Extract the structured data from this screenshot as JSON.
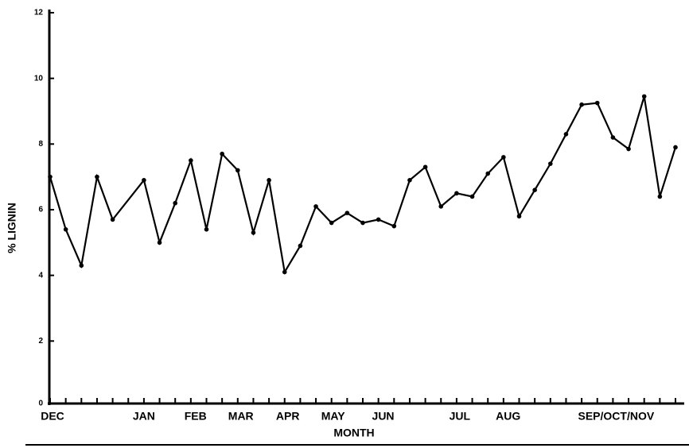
{
  "chart_data": {
    "type": "line",
    "x_label": "MONTH",
    "y_label": "% LIGNIN",
    "x": [
      0,
      1,
      2,
      3,
      4,
      6,
      7,
      8,
      9,
      10,
      11,
      12,
      13,
      14,
      15,
      16,
      17,
      18,
      19,
      20,
      21,
      22,
      23,
      24,
      25,
      26,
      27,
      28,
      29,
      30,
      31,
      32,
      33,
      34,
      35,
      36,
      37,
      38,
      39,
      40
    ],
    "values": [
      7.0,
      5.4,
      4.3,
      7.0,
      5.7,
      6.9,
      5.0,
      6.2,
      7.5,
      5.4,
      7.7,
      7.2,
      5.3,
      6.9,
      4.1,
      4.9,
      6.1,
      5.6,
      5.9,
      5.6,
      5.7,
      5.5,
      6.9,
      7.3,
      6.1,
      6.5,
      6.4,
      7.1,
      7.6,
      5.8,
      6.6,
      7.4,
      8.3,
      9.2,
      9.25,
      8.2,
      7.85,
      9.45,
      6.4,
      7.9
    ],
    "color": "#000000",
    "xlim": [
      0,
      40
    ],
    "xticks": [
      {
        "value": 0,
        "label": "DEC"
      },
      {
        "value": 6,
        "label": "JAN"
      },
      {
        "value": 9.3,
        "label": "FEB"
      },
      {
        "value": 12.2,
        "label": "MAR"
      },
      {
        "value": 15.2,
        "label": "APR"
      },
      {
        "value": 18.1,
        "label": "MAY"
      },
      {
        "value": 21.3,
        "label": "JUN"
      },
      {
        "value": 26.2,
        "label": "JUL"
      },
      {
        "value": 29.3,
        "label": "AUG"
      },
      {
        "value": 36.2,
        "label": "SEP/OCT/NOV"
      }
    ],
    "xminor": [
      0,
      1,
      2,
      3,
      4,
      5,
      6,
      7,
      8,
      9,
      10,
      11,
      12,
      13,
      14,
      15,
      16,
      17,
      18,
      19,
      20,
      21,
      22,
      23,
      24,
      25,
      26,
      27,
      28,
      29,
      30,
      31,
      32,
      33,
      34,
      35,
      36,
      37,
      38,
      39,
      40
    ],
    "ylim": [
      0,
      12
    ],
    "yticks": [
      0,
      2,
      4,
      6,
      8,
      10,
      12
    ]
  }
}
